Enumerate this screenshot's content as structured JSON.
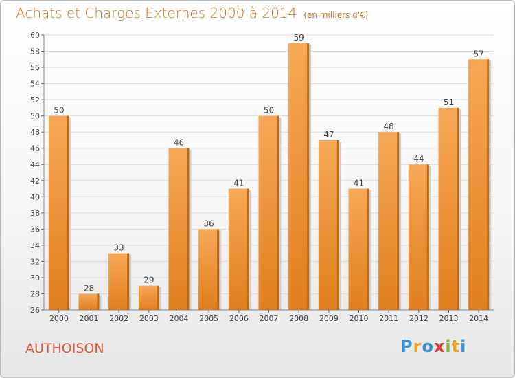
{
  "title": "Achats et Charges Externes 2000 à 2014",
  "unit": "(en milliers d'€)",
  "commune": "AUTHOISON",
  "logo": {
    "text": "Proxiti",
    "letters": [
      {
        "char": "P",
        "color": "#3a8fd6"
      },
      {
        "char": "r",
        "color": "#f2a31b"
      },
      {
        "char": "o",
        "color": "#3a8fd6"
      },
      {
        "char": "x",
        "color": "#e03c31"
      },
      {
        "char": "i",
        "color": "#7cb83b"
      },
      {
        "char": "t",
        "color": "#f2a31b"
      },
      {
        "char": "i",
        "color": "#3a8fd6"
      }
    ]
  },
  "colors": {
    "bar_light": "#f7a856",
    "bar_dark": "#e07f1f",
    "bar_side": "#bf6a14",
    "title": "#c87a2a",
    "commune": "#e05a3a"
  },
  "chart_data": {
    "type": "bar",
    "title": "Achats et Charges Externes 2000 à 2014",
    "ylabel": "en milliers d'€",
    "xlabel": "",
    "categories": [
      "2000",
      "2001",
      "2002",
      "2003",
      "2004",
      "2005",
      "2006",
      "2007",
      "2008",
      "2009",
      "2010",
      "2011",
      "2012",
      "2013",
      "2014"
    ],
    "values": [
      50,
      28,
      33,
      29,
      46,
      36,
      41,
      50,
      59,
      47,
      41,
      48,
      44,
      51,
      57
    ],
    "ylim": [
      26,
      60
    ],
    "yticks": [
      26,
      28,
      30,
      32,
      34,
      36,
      38,
      40,
      42,
      44,
      46,
      48,
      50,
      52,
      54,
      56,
      58,
      60
    ],
    "grid": true
  }
}
